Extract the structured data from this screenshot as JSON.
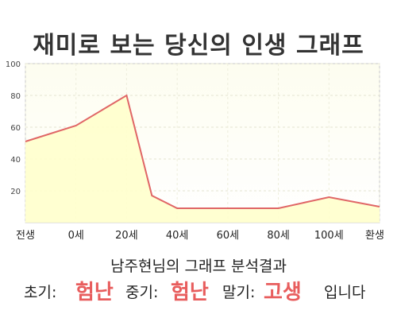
{
  "title": "재미로 보는 당신의 인생 그래프",
  "chart_data": {
    "type": "area",
    "categories": [
      "전생",
      "0세",
      "20세",
      "40세",
      "60세",
      "80세",
      "100세",
      "환생"
    ],
    "points": [
      {
        "x": "전생",
        "y": 51
      },
      {
        "x": "0세",
        "y": 61
      },
      {
        "x": "20세",
        "y": 80
      },
      {
        "x": "20~40세",
        "y": 17
      },
      {
        "x": "40세",
        "y": 9
      },
      {
        "x": "60세",
        "y": 9
      },
      {
        "x": "80세",
        "y": 9
      },
      {
        "x": "100세",
        "y": 16
      },
      {
        "x": "환생",
        "y": 10
      }
    ],
    "yticks": [
      "20",
      "40",
      "60",
      "80",
      "100"
    ],
    "ylim": [
      0,
      100
    ],
    "grid": true,
    "line_color": "#e06666",
    "fill_color": "#ffffcc"
  },
  "result": {
    "title": "남주현님의 그래프 분석결과",
    "early_label": "초기:",
    "early_value": "험난",
    "mid_label": "중기:",
    "mid_value": "험난",
    "late_label": "말기:",
    "late_value": "고생",
    "ending": "입니다"
  }
}
